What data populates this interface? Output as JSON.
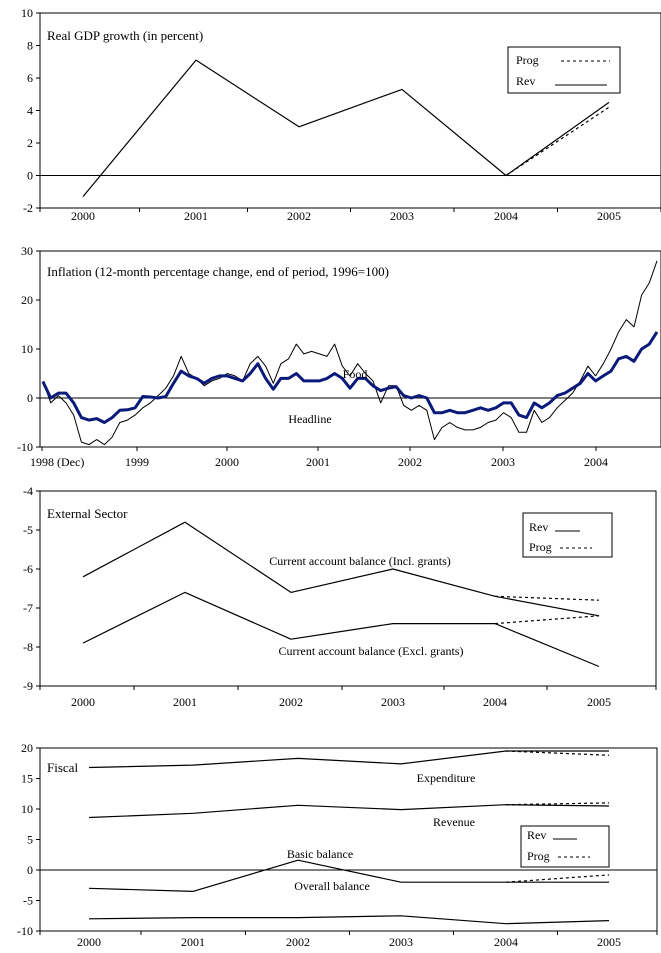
{
  "chart_data": [
    {
      "type": "line",
      "title": "Real GDP growth (in percent)",
      "x": [
        "2000",
        "2001",
        "2002",
        "2003",
        "2004",
        "2005"
      ],
      "ylim": [
        -2,
        10
      ],
      "yticks": [
        -2,
        0,
        2,
        4,
        6,
        8,
        10
      ],
      "zero_line": true,
      "legend": {
        "placement": "top-right",
        "entries": [
          {
            "label": "Prog",
            "style": "dashed"
          },
          {
            "label": "Rev",
            "style": "solid"
          }
        ]
      },
      "series": [
        {
          "name": "Rev",
          "style": "solid",
          "values": [
            -1.3,
            7.1,
            3.0,
            5.3,
            0.0,
            4.5
          ]
        },
        {
          "name": "Prog",
          "style": "dashed",
          "values": [
            null,
            null,
            null,
            null,
            0.0,
            4.2
          ]
        }
      ]
    },
    {
      "type": "line",
      "title": "Inflation (12-month percentage change, end of period, 1996=100)",
      "x_tick_labels": [
        "1998 (Dec)",
        "1999",
        "2000",
        "2001",
        "2002",
        "2003",
        "2004"
      ],
      "ylim": [
        -10,
        30
      ],
      "yticks": [
        -10,
        0,
        10,
        20,
        30
      ],
      "zero_line": true,
      "x_start": "1998-12",
      "x_step": "month",
      "series": [
        {
          "name": "Food",
          "style": "thin",
          "values": [
            3.5,
            -1.0,
            0.5,
            -1.0,
            -3.5,
            -9.0,
            -9.5,
            -8.5,
            -9.5,
            -8.0,
            -5.0,
            -4.5,
            -3.5,
            -2.0,
            -1.0,
            0.5,
            2.0,
            4.5,
            8.5,
            5.0,
            4.0,
            2.5,
            3.5,
            4.0,
            5.0,
            4.5,
            3.5,
            7.0,
            8.5,
            6.5,
            3.0,
            7.0,
            8.0,
            11.0,
            9.0,
            9.5,
            9.0,
            8.5,
            11.0,
            6.5,
            4.5,
            7.0,
            5.0,
            3.5,
            -1.0,
            2.5,
            2.5,
            -1.5,
            -2.5,
            -1.5,
            -2.5,
            -8.5,
            -6.0,
            -5.0,
            -6.0,
            -6.5,
            -6.5,
            -6.0,
            -5.0,
            -4.5,
            -3.0,
            -4.0,
            -7.0,
            -7.0,
            -2.5,
            -5.0,
            -4.0,
            -2.0,
            -0.5,
            1.0,
            3.5,
            6.5,
            4.5,
            7.0,
            10.0,
            13.5,
            16.0,
            14.5,
            21.0,
            23.5,
            28.0
          ]
        },
        {
          "name": "Headline",
          "style": "thick",
          "values": [
            3.3,
            0.0,
            1.0,
            1.0,
            -1.0,
            -4.0,
            -4.5,
            -4.2,
            -5.0,
            -4.0,
            -2.5,
            -2.4,
            -2.0,
            0.3,
            0.2,
            0.0,
            0.3,
            3.0,
            5.5,
            4.5,
            4.0,
            3.0,
            4.0,
            4.5,
            4.5,
            4.0,
            3.5,
            5.0,
            7.0,
            4.0,
            1.8,
            4.0,
            4.0,
            5.0,
            3.5,
            3.5,
            3.5,
            4.0,
            5.0,
            4.0,
            2.0,
            4.0,
            4.0,
            2.5,
            1.5,
            2.0,
            2.3,
            0.5,
            0.0,
            0.5,
            0.0,
            -3.0,
            -3.0,
            -2.5,
            -3.0,
            -3.0,
            -2.5,
            -2.0,
            -2.5,
            -2.0,
            -1.0,
            -1.0,
            -3.5,
            -4.0,
            -1.0,
            -2.0,
            -1.0,
            0.5,
            1.0,
            2.0,
            3.0,
            5.0,
            3.5,
            4.5,
            5.5,
            8.0,
            8.5,
            7.5,
            10.0,
            11.0,
            13.5
          ]
        }
      ],
      "annotations": [
        "Food",
        "Headline"
      ]
    },
    {
      "type": "line",
      "title": "External Sector",
      "x": [
        "2000",
        "2001",
        "2002",
        "2003",
        "2004",
        "2005"
      ],
      "ylim": [
        -9,
        -4
      ],
      "yticks": [
        -9,
        -8,
        -7,
        -6,
        -5,
        -4
      ],
      "legend": {
        "placement": "top-right",
        "entries": [
          {
            "label": "Rev",
            "style": "solid"
          },
          {
            "label": "Prog",
            "style": "dashed"
          }
        ]
      },
      "series": [
        {
          "name": "Current account balance (Incl. grants)",
          "style": "solid",
          "values": [
            -6.2,
            -4.8,
            -6.6,
            -6.0,
            -6.7,
            -7.2
          ]
        },
        {
          "name": "Current account balance (Excl. grants)",
          "style": "solid",
          "values": [
            -7.9,
            -6.6,
            -7.8,
            -7.4,
            -7.4,
            -8.5
          ]
        },
        {
          "name": "Prog",
          "style": "dashed",
          "values": [
            null,
            null,
            null,
            null,
            -6.7,
            -6.8
          ]
        },
        {
          "name": "Prog",
          "style": "dashed",
          "values": [
            null,
            null,
            null,
            null,
            -7.4,
            -7.2
          ]
        }
      ]
    },
    {
      "type": "line",
      "title": "Fiscal",
      "x": [
        "2000",
        "2001",
        "2002",
        "2003",
        "2004",
        "2005"
      ],
      "ylim": [
        -10,
        20
      ],
      "yticks": [
        -10,
        -5,
        0,
        5,
        10,
        15,
        20
      ],
      "zero_line": true,
      "legend": {
        "placement": "right",
        "entries": [
          {
            "label": "Rev",
            "style": "solid"
          },
          {
            "label": "Prog",
            "style": "dashed"
          }
        ]
      },
      "series": [
        {
          "name": "Expenditure",
          "style": "solid",
          "values": [
            16.8,
            17.2,
            18.3,
            17.4,
            19.5,
            19.5
          ]
        },
        {
          "name": "Revenue",
          "style": "solid",
          "values": [
            8.6,
            9.3,
            10.6,
            9.9,
            10.7,
            10.5
          ]
        },
        {
          "name": "Basic balance",
          "style": "solid",
          "values": [
            -3.0,
            -3.5,
            1.6,
            -2.0,
            -2.0,
            -2.0
          ]
        },
        {
          "name": "Overall balance",
          "style": "solid",
          "values": [
            -8.0,
            -7.8,
            -7.8,
            -7.5,
            -8.8,
            -8.3
          ]
        },
        {
          "name": "Prog",
          "style": "dashed",
          "values": [
            null,
            null,
            null,
            null,
            19.5,
            18.8
          ]
        },
        {
          "name": "Prog",
          "style": "dashed",
          "values": [
            null,
            null,
            null,
            null,
            10.7,
            11.0
          ]
        },
        {
          "name": "Prog",
          "style": "dashed",
          "values": [
            null,
            null,
            null,
            null,
            -2.0,
            -0.8
          ]
        }
      ]
    }
  ]
}
